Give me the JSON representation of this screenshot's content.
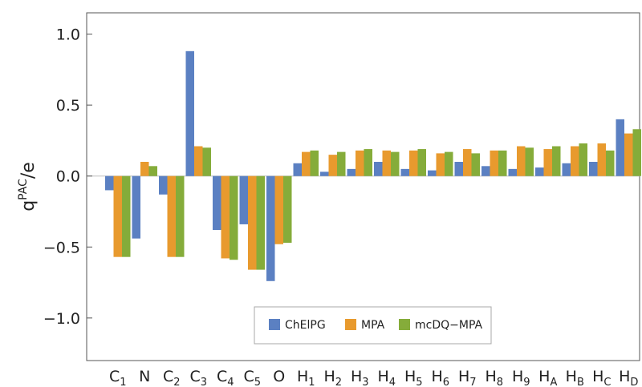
{
  "chart_data": {
    "type": "bar",
    "ylabel": {
      "base": "q",
      "sup": "PAC",
      "suffix": "/e"
    },
    "xlabel": "",
    "ylim": [
      -1.3,
      1.15
    ],
    "yticks": [
      1.0,
      0.5,
      0.0,
      -0.5,
      -1.0
    ],
    "ytick_labels": [
      "1.0",
      "0.5",
      "0.0",
      "−0.5",
      "−1.0"
    ],
    "grid": false,
    "legend_position": "bottom-center",
    "categories": [
      {
        "base": "C",
        "sub": "1"
      },
      {
        "base": "N",
        "sub": ""
      },
      {
        "base": "C",
        "sub": "2"
      },
      {
        "base": "C",
        "sub": "3"
      },
      {
        "base": "C",
        "sub": "4"
      },
      {
        "base": "C",
        "sub": "5"
      },
      {
        "base": "O",
        "sub": ""
      },
      {
        "base": "H",
        "sub": "1"
      },
      {
        "base": "H",
        "sub": "2"
      },
      {
        "base": "H",
        "sub": "3"
      },
      {
        "base": "H",
        "sub": "4"
      },
      {
        "base": "H",
        "sub": "5"
      },
      {
        "base": "H",
        "sub": "6"
      },
      {
        "base": "H",
        "sub": "7"
      },
      {
        "base": "H",
        "sub": "8"
      },
      {
        "base": "H",
        "sub": "9"
      },
      {
        "base": "H",
        "sub": "A"
      },
      {
        "base": "H",
        "sub": "B"
      },
      {
        "base": "H",
        "sub": "C"
      },
      {
        "base": "H",
        "sub": "D"
      }
    ],
    "series": [
      {
        "name": "ChElPG",
        "color": "#5b80c2",
        "values": [
          -0.1,
          -0.44,
          -0.13,
          0.88,
          -0.38,
          -0.34,
          -0.74,
          0.09,
          0.03,
          0.05,
          0.1,
          0.05,
          0.04,
          0.1,
          0.07,
          0.05,
          0.06,
          0.09,
          0.1,
          0.4
        ]
      },
      {
        "name": "MPA",
        "color": "#e89a2e",
        "values": [
          -0.57,
          0.1,
          -0.57,
          0.21,
          -0.58,
          -0.66,
          -0.48,
          0.17,
          0.15,
          0.18,
          0.18,
          0.18,
          0.16,
          0.19,
          0.18,
          0.21,
          0.19,
          0.21,
          0.23,
          0.3
        ]
      },
      {
        "name": "mcDQ−MPA",
        "color": "#85ac3a",
        "values": [
          -0.57,
          0.07,
          -0.57,
          0.2,
          -0.59,
          -0.66,
          -0.47,
          0.18,
          0.17,
          0.19,
          0.17,
          0.19,
          0.17,
          0.16,
          0.18,
          0.2,
          0.21,
          0.23,
          0.18,
          0.33
        ]
      }
    ]
  }
}
